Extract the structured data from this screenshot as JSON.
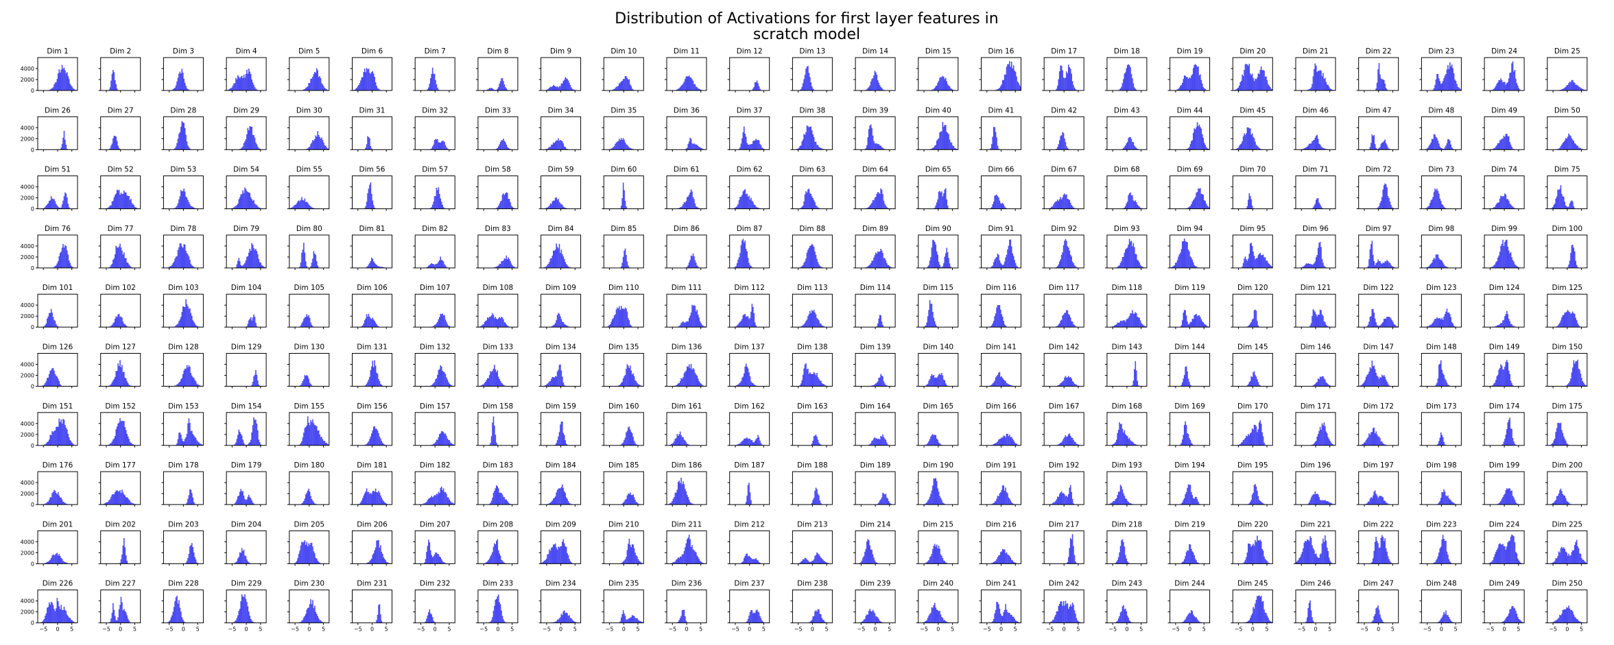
{
  "chart_data": {
    "type": "bar",
    "title_lines": [
      "Distribution of Activations for first layer features in",
      "scratch model"
    ],
    "grid": false,
    "layout": {
      "rows": 10,
      "cols": 25
    },
    "panel_title_prefix": "Dim ",
    "panel_count": 250,
    "xlim": [
      -7,
      7
    ],
    "ylim": [
      0,
      6000
    ],
    "xticks": [
      -5,
      0,
      5
    ],
    "xtick_labels": [
      "−5",
      "0",
      "5"
    ],
    "yticks": [
      0,
      2000,
      4000
    ],
    "ytick_labels": [
      "0",
      "2000",
      "4000"
    ],
    "bar_color": "#4b4bf2",
    "bins": 40
  }
}
